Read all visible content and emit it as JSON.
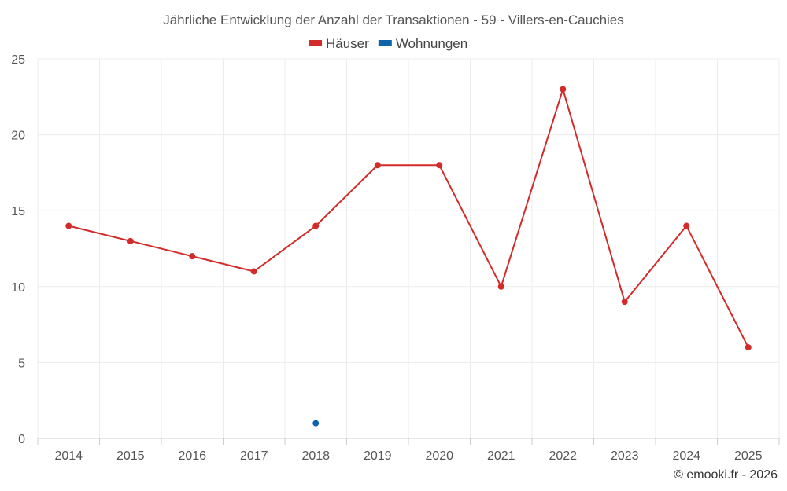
{
  "chart_data": {
    "type": "line",
    "title": "Jährliche Entwicklung der Anzahl der Transaktionen - 59 - Villers-en-Cauchies",
    "xlabel": "",
    "ylabel": "",
    "categories": [
      "2014",
      "2015",
      "2016",
      "2017",
      "2018",
      "2019",
      "2020",
      "2021",
      "2022",
      "2023",
      "2024",
      "2025"
    ],
    "ylim": [
      0,
      25
    ],
    "yticks": [
      0,
      5,
      10,
      15,
      20,
      25
    ],
    "grid": true,
    "legend_position": "top-center",
    "series": [
      {
        "name": "Häuser",
        "color": "#d32a2a",
        "values": [
          14,
          13,
          12,
          11,
          14,
          18,
          18,
          10,
          23,
          9,
          14,
          6
        ]
      },
      {
        "name": "Wohnungen",
        "color": "#0f63a8",
        "values": [
          null,
          null,
          null,
          null,
          1,
          null,
          null,
          null,
          null,
          null,
          null,
          null
        ]
      }
    ]
  },
  "credit": "© emooki.fr - 2026"
}
